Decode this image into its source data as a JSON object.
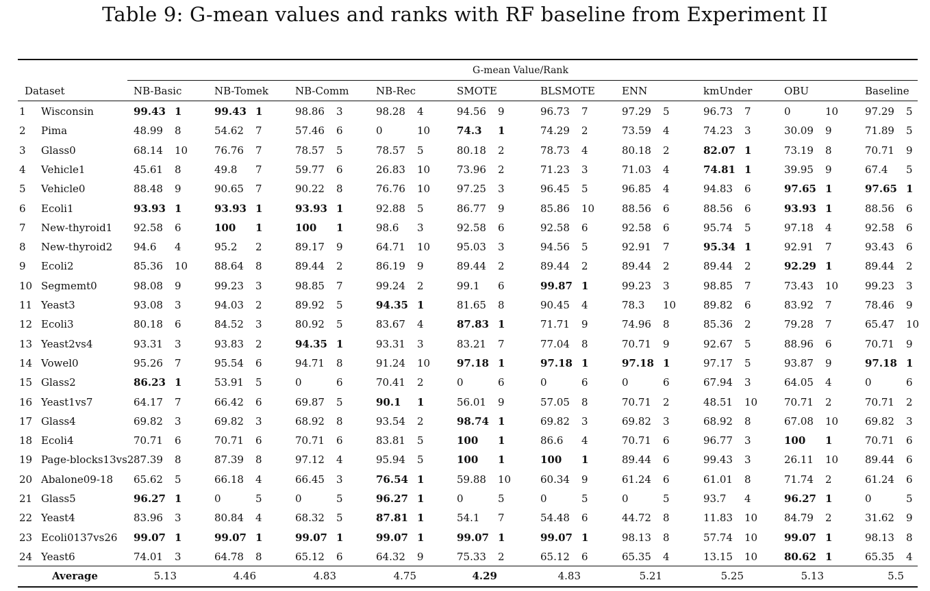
{
  "caption": "Table 9: G-mean values and ranks with RF baseline from Experiment II",
  "group_header": "G-mean Value/Rank",
  "dataset_header": "Dataset",
  "methods": [
    "NB-Basic",
    "NB-Tomek",
    "NB-Comm",
    "NB-Rec",
    "SMOTE",
    "BLSMOTE",
    "ENN",
    "kmUnder",
    "OBU",
    "Baseline"
  ],
  "rows": [
    {
      "idx": "1",
      "name": "Wisconsin",
      "cells": [
        [
          "99.43",
          "1",
          1
        ],
        [
          "99.43",
          "1",
          1
        ],
        [
          "98.86",
          "3",
          0
        ],
        [
          "98.28",
          "4",
          0
        ],
        [
          "94.56",
          "9",
          0
        ],
        [
          "96.73",
          "7",
          0
        ],
        [
          "97.29",
          "5",
          0
        ],
        [
          "96.73",
          "7",
          0
        ],
        [
          "0",
          "10",
          0
        ],
        [
          "97.29",
          "5",
          0
        ]
      ]
    },
    {
      "idx": "2",
      "name": "Pima",
      "cells": [
        [
          "48.99",
          "8",
          0
        ],
        [
          "54.62",
          "7",
          0
        ],
        [
          "57.46",
          "6",
          0
        ],
        [
          "0",
          "10",
          0
        ],
        [
          "74.3",
          "1",
          1
        ],
        [
          "74.29",
          "2",
          0
        ],
        [
          "73.59",
          "4",
          0
        ],
        [
          "74.23",
          "3",
          0
        ],
        [
          "30.09",
          "9",
          0
        ],
        [
          "71.89",
          "5",
          0
        ]
      ]
    },
    {
      "idx": "3",
      "name": "Glass0",
      "cells": [
        [
          "68.14",
          "10",
          0
        ],
        [
          "76.76",
          "7",
          0
        ],
        [
          "78.57",
          "5",
          0
        ],
        [
          "78.57",
          "5",
          0
        ],
        [
          "80.18",
          "2",
          0
        ],
        [
          "78.73",
          "4",
          0
        ],
        [
          "80.18",
          "2",
          0
        ],
        [
          "82.07",
          "1",
          1
        ],
        [
          "73.19",
          "8",
          0
        ],
        [
          "70.71",
          "9",
          0
        ]
      ]
    },
    {
      "idx": "4",
      "name": "Vehicle1",
      "cells": [
        [
          "45.61",
          "8",
          0
        ],
        [
          "49.8",
          "7",
          0
        ],
        [
          "59.77",
          "6",
          0
        ],
        [
          "26.83",
          "10",
          0
        ],
        [
          "73.96",
          "2",
          0
        ],
        [
          "71.23",
          "3",
          0
        ],
        [
          "71.03",
          "4",
          0
        ],
        [
          "74.81",
          "1",
          1
        ],
        [
          "39.95",
          "9",
          0
        ],
        [
          "67.4",
          "5",
          0
        ]
      ]
    },
    {
      "idx": "5",
      "name": "Vehicle0",
      "cells": [
        [
          "88.48",
          "9",
          0
        ],
        [
          "90.65",
          "7",
          0
        ],
        [
          "90.22",
          "8",
          0
        ],
        [
          "76.76",
          "10",
          0
        ],
        [
          "97.25",
          "3",
          0
        ],
        [
          "96.45",
          "5",
          0
        ],
        [
          "96.85",
          "4",
          0
        ],
        [
          "94.83",
          "6",
          0
        ],
        [
          "97.65",
          "1",
          1
        ],
        [
          "97.65",
          "1",
          1
        ]
      ]
    },
    {
      "idx": "6",
      "name": "Ecoli1",
      "cells": [
        [
          "93.93",
          "1",
          1
        ],
        [
          "93.93",
          "1",
          1
        ],
        [
          "93.93",
          "1",
          1
        ],
        [
          "92.88",
          "5",
          0
        ],
        [
          "86.77",
          "9",
          0
        ],
        [
          "85.86",
          "10",
          0
        ],
        [
          "88.56",
          "6",
          0
        ],
        [
          "88.56",
          "6",
          0
        ],
        [
          "93.93",
          "1",
          1
        ],
        [
          "88.56",
          "6",
          0
        ]
      ]
    },
    {
      "idx": "7",
      "name": "New-thyroid1",
      "cells": [
        [
          "92.58",
          "6",
          0
        ],
        [
          "100",
          "1",
          1
        ],
        [
          "100",
          "1",
          1
        ],
        [
          "98.6",
          "3",
          0
        ],
        [
          "92.58",
          "6",
          0
        ],
        [
          "92.58",
          "6",
          0
        ],
        [
          "92.58",
          "6",
          0
        ],
        [
          "95.74",
          "5",
          0
        ],
        [
          "97.18",
          "4",
          0
        ],
        [
          "92.58",
          "6",
          0
        ]
      ]
    },
    {
      "idx": "8",
      "name": "New-thyroid2",
      "cells": [
        [
          "94.6",
          "4",
          0
        ],
        [
          "95.2",
          "2",
          0
        ],
        [
          "89.17",
          "9",
          0
        ],
        [
          "64.71",
          "10",
          0
        ],
        [
          "95.03",
          "3",
          0
        ],
        [
          "94.56",
          "5",
          0
        ],
        [
          "92.91",
          "7",
          0
        ],
        [
          "95.34",
          "1",
          1
        ],
        [
          "92.91",
          "7",
          0
        ],
        [
          "93.43",
          "6",
          0
        ]
      ]
    },
    {
      "idx": "9",
      "name": "Ecoli2",
      "cells": [
        [
          "85.36",
          "10",
          0
        ],
        [
          "88.64",
          "8",
          0
        ],
        [
          "89.44",
          "2",
          0
        ],
        [
          "86.19",
          "9",
          0
        ],
        [
          "89.44",
          "2",
          0
        ],
        [
          "89.44",
          "2",
          0
        ],
        [
          "89.44",
          "2",
          0
        ],
        [
          "89.44",
          "2",
          0
        ],
        [
          "92.29",
          "1",
          1
        ],
        [
          "89.44",
          "2",
          0
        ]
      ]
    },
    {
      "idx": "10",
      "name": "Segmemt0",
      "cells": [
        [
          "98.08",
          "9",
          0
        ],
        [
          "99.23",
          "3",
          0
        ],
        [
          "98.85",
          "7",
          0
        ],
        [
          "99.24",
          "2",
          0
        ],
        [
          "99.1",
          "6",
          0
        ],
        [
          "99.87",
          "1",
          1
        ],
        [
          "99.23",
          "3",
          0
        ],
        [
          "98.85",
          "7",
          0
        ],
        [
          "73.43",
          "10",
          0
        ],
        [
          "99.23",
          "3",
          0
        ]
      ]
    },
    {
      "idx": "11",
      "name": "Yeast3",
      "cells": [
        [
          "93.08",
          "3",
          0
        ],
        [
          "94.03",
          "2",
          0
        ],
        [
          "89.92",
          "5",
          0
        ],
        [
          "94.35",
          "1",
          1
        ],
        [
          "81.65",
          "8",
          0
        ],
        [
          "90.45",
          "4",
          0
        ],
        [
          "78.3",
          "10",
          0
        ],
        [
          "89.82",
          "6",
          0
        ],
        [
          "83.92",
          "7",
          0
        ],
        [
          "78.46",
          "9",
          0
        ]
      ]
    },
    {
      "idx": "12",
      "name": "Ecoli3",
      "cells": [
        [
          "80.18",
          "6",
          0
        ],
        [
          "84.52",
          "3",
          0
        ],
        [
          "80.92",
          "5",
          0
        ],
        [
          "83.67",
          "4",
          0
        ],
        [
          "87.83",
          "1",
          1
        ],
        [
          "71.71",
          "9",
          0
        ],
        [
          "74.96",
          "8",
          0
        ],
        [
          "85.36",
          "2",
          0
        ],
        [
          "79.28",
          "7",
          0
        ],
        [
          "65.47",
          "10",
          0
        ]
      ]
    },
    {
      "idx": "13",
      "name": "Yeast2vs4",
      "cells": [
        [
          "93.31",
          "3",
          0
        ],
        [
          "93.83",
          "2",
          0
        ],
        [
          "94.35",
          "1",
          1
        ],
        [
          "93.31",
          "3",
          0
        ],
        [
          "83.21",
          "7",
          0
        ],
        [
          "77.04",
          "8",
          0
        ],
        [
          "70.71",
          "9",
          0
        ],
        [
          "92.67",
          "5",
          0
        ],
        [
          "88.96",
          "6",
          0
        ],
        [
          "70.71",
          "9",
          0
        ]
      ]
    },
    {
      "idx": "14",
      "name": "Vowel0",
      "cells": [
        [
          "95.26",
          "7",
          0
        ],
        [
          "95.54",
          "6",
          0
        ],
        [
          "94.71",
          "8",
          0
        ],
        [
          "91.24",
          "10",
          0
        ],
        [
          "97.18",
          "1",
          1
        ],
        [
          "97.18",
          "1",
          1
        ],
        [
          "97.18",
          "1",
          1
        ],
        [
          "97.17",
          "5",
          0
        ],
        [
          "93.87",
          "9",
          0
        ],
        [
          "97.18",
          "1",
          1
        ]
      ]
    },
    {
      "idx": "15",
      "name": "Glass2",
      "cells": [
        [
          "86.23",
          "1",
          1
        ],
        [
          "53.91",
          "5",
          0
        ],
        [
          "0",
          "6",
          0
        ],
        [
          "70.41",
          "2",
          0
        ],
        [
          "0",
          "6",
          0
        ],
        [
          "0",
          "6",
          0
        ],
        [
          "0",
          "6",
          0
        ],
        [
          "67.94",
          "3",
          0
        ],
        [
          "64.05",
          "4",
          0
        ],
        [
          "0",
          "6",
          0
        ]
      ]
    },
    {
      "idx": "16",
      "name": "Yeast1vs7",
      "cells": [
        [
          "64.17",
          "7",
          0
        ],
        [
          "66.42",
          "6",
          0
        ],
        [
          "69.87",
          "5",
          0
        ],
        [
          "90.1",
          "1",
          1
        ],
        [
          "56.01",
          "9",
          0
        ],
        [
          "57.05",
          "8",
          0
        ],
        [
          "70.71",
          "2",
          0
        ],
        [
          "48.51",
          "10",
          0
        ],
        [
          "70.71",
          "2",
          0
        ],
        [
          "70.71",
          "2",
          0
        ]
      ]
    },
    {
      "idx": "17",
      "name": "Glass4",
      "cells": [
        [
          "69.82",
          "3",
          0
        ],
        [
          "69.82",
          "3",
          0
        ],
        [
          "68.92",
          "8",
          0
        ],
        [
          "93.54",
          "2",
          0
        ],
        [
          "98.74",
          "1",
          1
        ],
        [
          "69.82",
          "3",
          0
        ],
        [
          "69.82",
          "3",
          0
        ],
        [
          "68.92",
          "8",
          0
        ],
        [
          "67.08",
          "10",
          0
        ],
        [
          "69.82",
          "3",
          0
        ]
      ]
    },
    {
      "idx": "18",
      "name": "Ecoli4",
      "cells": [
        [
          "70.71",
          "6",
          0
        ],
        [
          "70.71",
          "6",
          0
        ],
        [
          "70.71",
          "6",
          0
        ],
        [
          "83.81",
          "5",
          0
        ],
        [
          "100",
          "1",
          1
        ],
        [
          "86.6",
          "4",
          0
        ],
        [
          "70.71",
          "6",
          0
        ],
        [
          "96.77",
          "3",
          0
        ],
        [
          "100",
          "1",
          1
        ],
        [
          "70.71",
          "6",
          0
        ]
      ]
    },
    {
      "idx": "19",
      "name": "Page-blocks13vs2",
      "cells": [
        [
          "87.39",
          "8",
          0
        ],
        [
          "87.39",
          "8",
          0
        ],
        [
          "97.12",
          "4",
          0
        ],
        [
          "95.94",
          "5",
          0
        ],
        [
          "100",
          "1",
          1
        ],
        [
          "100",
          "1",
          1
        ],
        [
          "89.44",
          "6",
          0
        ],
        [
          "99.43",
          "3",
          0
        ],
        [
          "26.11",
          "10",
          0
        ],
        [
          "89.44",
          "6",
          0
        ]
      ]
    },
    {
      "idx": "20",
      "name": "Abalone09-18",
      "cells": [
        [
          "65.62",
          "5",
          0
        ],
        [
          "66.18",
          "4",
          0
        ],
        [
          "66.45",
          "3",
          0
        ],
        [
          "76.54",
          "1",
          1
        ],
        [
          "59.88",
          "10",
          0
        ],
        [
          "60.34",
          "9",
          0
        ],
        [
          "61.24",
          "6",
          0
        ],
        [
          "61.01",
          "8",
          0
        ],
        [
          "71.74",
          "2",
          0
        ],
        [
          "61.24",
          "6",
          0
        ]
      ]
    },
    {
      "idx": "21",
      "name": "Glass5",
      "cells": [
        [
          "96.27",
          "1",
          1
        ],
        [
          "0",
          "5",
          0
        ],
        [
          "0",
          "5",
          0
        ],
        [
          "96.27",
          "1",
          1
        ],
        [
          "0",
          "5",
          0
        ],
        [
          "0",
          "5",
          0
        ],
        [
          "0",
          "5",
          0
        ],
        [
          "93.7",
          "4",
          0
        ],
        [
          "96.27",
          "1",
          1
        ],
        [
          "0",
          "5",
          0
        ]
      ]
    },
    {
      "idx": "22",
      "name": "Yeast4",
      "cells": [
        [
          "83.96",
          "3",
          0
        ],
        [
          "80.84",
          "4",
          0
        ],
        [
          "68.32",
          "5",
          0
        ],
        [
          "87.81",
          "1",
          1
        ],
        [
          "54.1",
          "7",
          0
        ],
        [
          "54.48",
          "6",
          0
        ],
        [
          "44.72",
          "8",
          0
        ],
        [
          "11.83",
          "10",
          0
        ],
        [
          "84.79",
          "2",
          0
        ],
        [
          "31.62",
          "9",
          0
        ]
      ]
    },
    {
      "idx": "23",
      "name": "Ecoli0137vs26",
      "cells": [
        [
          "99.07",
          "1",
          1
        ],
        [
          "99.07",
          "1",
          1
        ],
        [
          "99.07",
          "1",
          1
        ],
        [
          "99.07",
          "1",
          1
        ],
        [
          "99.07",
          "1",
          1
        ],
        [
          "99.07",
          "1",
          1
        ],
        [
          "98.13",
          "8",
          0
        ],
        [
          "57.74",
          "10",
          0
        ],
        [
          "99.07",
          "1",
          1
        ],
        [
          "98.13",
          "8",
          0
        ]
      ]
    },
    {
      "idx": "24",
      "name": "Yeast6",
      "cells": [
        [
          "74.01",
          "3",
          0
        ],
        [
          "64.78",
          "8",
          0
        ],
        [
          "65.12",
          "6",
          0
        ],
        [
          "64.32",
          "9",
          0
        ],
        [
          "75.33",
          "2",
          0
        ],
        [
          "65.12",
          "6",
          0
        ],
        [
          "65.35",
          "4",
          0
        ],
        [
          "13.15",
          "10",
          0
        ],
        [
          "80.62",
          "1",
          1
        ],
        [
          "65.35",
          "4",
          0
        ]
      ]
    }
  ],
  "average": {
    "label": "Average",
    "values": [
      [
        "5.13",
        0
      ],
      [
        "4.46",
        0
      ],
      [
        "4.83",
        0
      ],
      [
        "4.75",
        0
      ],
      [
        "4.29",
        1
      ],
      [
        "4.83",
        0
      ],
      [
        "5.21",
        0
      ],
      [
        "5.25",
        0
      ],
      [
        "5.13",
        0
      ],
      [
        "5.5",
        0
      ]
    ]
  }
}
